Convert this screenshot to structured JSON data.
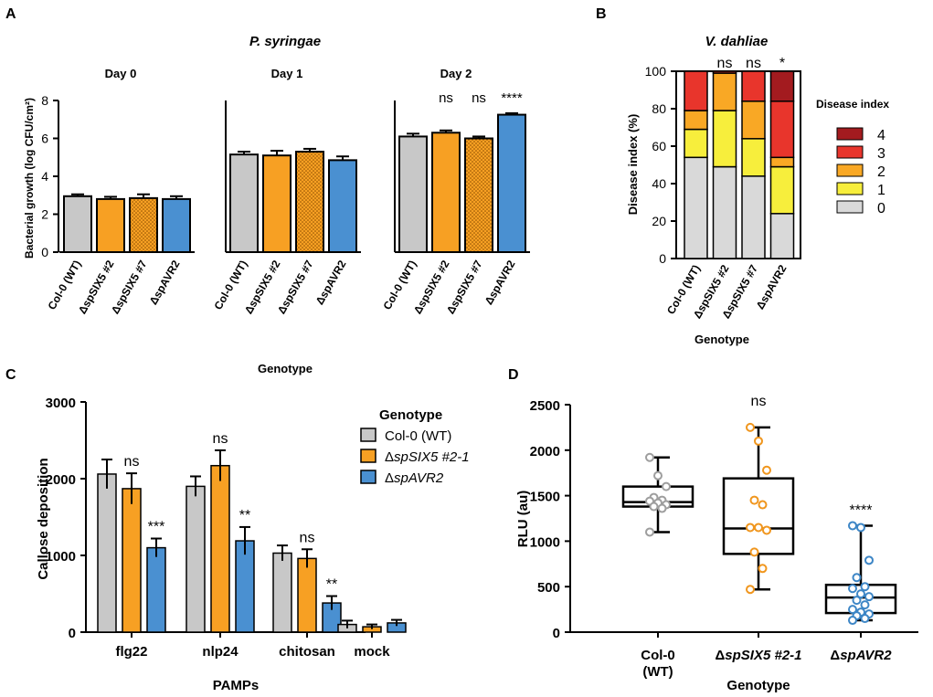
{
  "colors": {
    "grey": "#c8c8c8",
    "orange": "#f7a023",
    "blue": "#4a90d1",
    "d4": "#a31b1f",
    "d3": "#e8352c",
    "d2": "#f9a825",
    "d1": "#f7ee3c",
    "d0": "#d9d9d9",
    "box_grey": "#9e9e9e",
    "box_orange": "#f0961e",
    "box_blue": "#3d86c6"
  },
  "chart_data": [
    {
      "id": "A",
      "panel_label": "A",
      "type": "bar",
      "title": "P. syringae",
      "ylabel": "Bacterial growth (log CFU/cm²)",
      "xlabel": "Genotype",
      "ylim": [
        0,
        8
      ],
      "yticks": [
        "0",
        "2",
        "4",
        "6",
        "8"
      ],
      "categories": [
        "Col-0 (WT)",
        "ΔspSIX5 #2",
        "ΔspSIX5 #7",
        "ΔspAVR2"
      ],
      "bar_styles": [
        "grey",
        "orange",
        "orange-dotted",
        "blue"
      ],
      "groups": [
        {
          "name": "Day 0",
          "values": [
            2.95,
            2.8,
            2.85,
            2.8
          ],
          "errors": [
            0.1,
            0.12,
            0.2,
            0.15
          ],
          "annotations": [
            "",
            "",
            "",
            ""
          ]
        },
        {
          "name": "Day 1",
          "values": [
            5.15,
            5.1,
            5.3,
            4.85
          ],
          "errors": [
            0.15,
            0.25,
            0.15,
            0.2
          ],
          "annotations": [
            "",
            "",
            "",
            ""
          ]
        },
        {
          "name": "Day 2",
          "values": [
            6.1,
            6.3,
            6.0,
            7.25
          ],
          "errors": [
            0.15,
            0.12,
            0.1,
            0.08
          ],
          "annotations": [
            "",
            "ns",
            "ns",
            "****"
          ]
        }
      ]
    },
    {
      "id": "B",
      "panel_label": "B",
      "type": "stacked-bar",
      "title": "V. dahliae",
      "ylabel": "Disease index (%)",
      "xlabel": "Genotype",
      "ylim": [
        0,
        100
      ],
      "yticks": [
        "0",
        "20",
        "40",
        "60",
        "80",
        "100"
      ],
      "categories": [
        "Col-0 (WT)",
        "ΔspSIX5 #2",
        "ΔspSIX5 #7",
        "ΔspAVR2"
      ],
      "annotations": [
        "",
        "ns",
        "ns",
        "*"
      ],
      "legend_title": "Disease index",
      "legend": [
        "4",
        "3",
        "2",
        "1",
        "0"
      ],
      "series": [
        {
          "name": "0",
          "values": [
            54,
            49,
            44,
            24
          ]
        },
        {
          "name": "1",
          "values": [
            15,
            30,
            20,
            25
          ]
        },
        {
          "name": "2",
          "values": [
            10,
            20,
            20,
            5
          ]
        },
        {
          "name": "3",
          "values": [
            21,
            1,
            16,
            30
          ]
        },
        {
          "name": "4",
          "values": [
            0,
            0,
            0,
            16
          ]
        }
      ]
    },
    {
      "id": "C",
      "panel_label": "C",
      "type": "bar",
      "ylabel": "Callose deposition",
      "xlabel": "PAMPs",
      "ylim": [
        0,
        3000
      ],
      "yticks": [
        "0",
        "1000",
        "2000",
        "3000"
      ],
      "categories": [
        "flg22",
        "nlp24",
        "chitosan",
        "mock"
      ],
      "legend_title": "Genotype",
      "legend": [
        {
          "pre": "Col-0 (WT)",
          "ital": ""
        },
        {
          "pre": "Δ",
          "ital": "spSIX5 #2-1"
        },
        {
          "pre": "Δ",
          "ital": "spAVR2"
        }
      ],
      "series": [
        {
          "name": "Col-0 (WT)",
          "values": [
            2060,
            1900,
            1030,
            100
          ],
          "errors": [
            190,
            130,
            100,
            50
          ]
        },
        {
          "name": "ΔspSIX5 #2-1",
          "values": [
            1870,
            2170,
            960,
            70
          ],
          "errors": [
            200,
            200,
            120,
            30
          ]
        },
        {
          "name": "ΔspAVR2",
          "values": [
            1100,
            1190,
            380,
            120
          ],
          "errors": [
            120,
            180,
            90,
            40
          ]
        }
      ],
      "annotations": [
        [
          "",
          "ns",
          "***"
        ],
        [
          "",
          "ns",
          "**"
        ],
        [
          "",
          "ns",
          "**"
        ],
        [
          "",
          "",
          ""
        ]
      ]
    },
    {
      "id": "D",
      "panel_label": "D",
      "type": "box",
      "ylabel": "RLU (au)",
      "xlabel": "Genotype",
      "ylim": [
        0,
        2500
      ],
      "yticks": [
        "0",
        "500",
        "1000",
        "1500",
        "2000",
        "2500"
      ],
      "categories": [
        {
          "line1": "Col-0",
          "line2": "(WT)"
        },
        {
          "line1": "ΔspSIX5 #2-1",
          "line2": ""
        },
        {
          "line1": "ΔspAVR2",
          "line2": ""
        }
      ],
      "annotations": [
        "",
        "ns",
        "****"
      ],
      "boxes": [
        {
          "min": 1100,
          "q1": 1380,
          "median": 1430,
          "q3": 1600,
          "max": 1920,
          "points": [
            1920,
            1720,
            1600,
            1480,
            1450,
            1440,
            1420,
            1400,
            1380,
            1360,
            1100
          ]
        },
        {
          "min": 470,
          "q1": 860,
          "median": 1140,
          "q3": 1690,
          "max": 2250,
          "points": [
            2250,
            2100,
            1780,
            1450,
            1400,
            1150,
            1150,
            1120,
            880,
            700,
            470
          ]
        },
        {
          "min": 130,
          "q1": 210,
          "median": 380,
          "q3": 520,
          "max": 1170,
          "points": [
            1170,
            1150,
            790,
            600,
            500,
            480,
            420,
            390,
            350,
            300,
            250,
            220,
            200,
            180,
            150,
            130
          ]
        }
      ]
    }
  ]
}
